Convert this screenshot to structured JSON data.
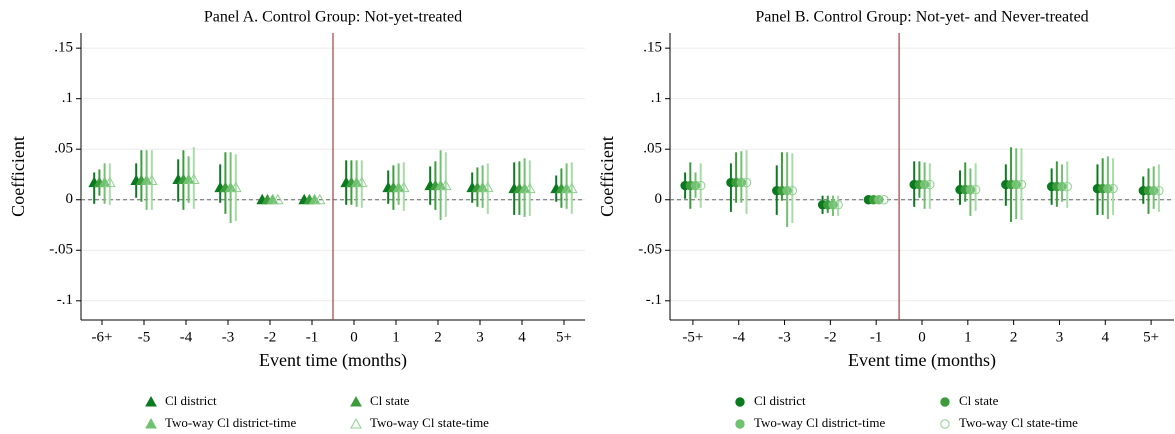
{
  "chart_data": [
    {
      "type": "errorbar",
      "title": "Panel A. Control Group: Not-yet-treated",
      "x_label": "Event time (months)",
      "y_label": "Coefficient",
      "categories": [
        "-6+",
        "-5",
        "-4",
        "-3",
        "-2",
        "-1",
        "0",
        "1",
        "2",
        "3",
        "4",
        "5+"
      ],
      "ylim": [
        -0.119,
        0.165
      ],
      "yticks": [
        {
          "value": -0.1,
          "label": "-.1"
        },
        {
          "value": -0.05,
          "label": "-.05"
        },
        0,
        {
          "value": 0.05,
          "label": ".05"
        },
        {
          "value": 0.1,
          "label": ".1"
        },
        {
          "value": 0.15,
          "label": ".15"
        }
      ],
      "grid": true,
      "hline": 0,
      "xline": 5.5,
      "marker": "triangle",
      "legend": "bottom",
      "series": [
        {
          "name": "Cl district",
          "color": "#0b7a1f",
          "hollow": false,
          "values": [
            0.017,
            0.019,
            0.02,
            0.012,
            0,
            0,
            0.017,
            0.012,
            0.014,
            0.012,
            0.011,
            0.011
          ],
          "lower": [
            -0.004,
            0.002,
            -0.002,
            -0.003,
            0,
            0,
            -0.005,
            -0.004,
            -0.005,
            -0.003,
            -0.015,
            -0.002
          ],
          "upper": [
            0.027,
            0.036,
            0.04,
            0.035,
            0,
            0,
            0.039,
            0.029,
            0.033,
            0.027,
            0.037,
            0.024
          ]
        },
        {
          "name": "Cl state",
          "color": "#3c9c3c",
          "hollow": false,
          "values": [
            0.017,
            0.019,
            0.02,
            0.012,
            0,
            0,
            0.017,
            0.012,
            0.014,
            0.012,
            0.011,
            0.011
          ],
          "lower": [
            0.004,
            -0.002,
            -0.01,
            -0.014,
            0,
            0,
            -0.005,
            -0.01,
            -0.01,
            -0.007,
            -0.015,
            -0.008
          ],
          "upper": [
            0.03,
            0.049,
            0.049,
            0.047,
            0,
            0,
            0.039,
            0.034,
            0.038,
            0.032,
            0.038,
            0.031
          ]
        },
        {
          "name": "Two-way Cl district-time",
          "color": "#72c172",
          "hollow": false,
          "values": [
            0.017,
            0.019,
            0.02,
            0.012,
            0,
            0,
            0.017,
            0.012,
            0.014,
            0.012,
            0.011,
            0.011
          ],
          "lower": [
            -0.004,
            -0.01,
            -0.003,
            -0.023,
            0,
            0,
            -0.007,
            -0.005,
            -0.02,
            -0.008,
            -0.017,
            -0.009
          ],
          "upper": [
            0.036,
            0.049,
            0.043,
            0.047,
            0,
            0,
            0.039,
            0.036,
            0.049,
            0.034,
            0.041,
            0.036
          ]
        },
        {
          "name": "Two-way Cl state-time",
          "color": "#a9dba9",
          "hollow": true,
          "values": [
            0.017,
            0.019,
            0.02,
            0.012,
            0,
            0,
            0.017,
            0.012,
            0.014,
            0.012,
            0.011,
            0.011
          ],
          "lower": [
            -0.005,
            -0.01,
            -0.009,
            -0.021,
            0,
            0,
            -0.008,
            -0.011,
            -0.017,
            -0.014,
            -0.016,
            -0.014
          ],
          "upper": [
            0.036,
            0.049,
            0.052,
            0.045,
            0,
            0,
            0.039,
            0.037,
            0.047,
            0.036,
            0.039,
            0.037
          ]
        }
      ]
    },
    {
      "type": "errorbar",
      "title": "Panel B. Control Group: Not-yet- and Never-treated",
      "x_label": "Event time (months)",
      "y_label": "Coefficient",
      "categories": [
        "-5+",
        "-4",
        "-3",
        "-2",
        "-1",
        "0",
        "1",
        "2",
        "3",
        "4",
        "5+"
      ],
      "ylim": [
        -0.119,
        0.165
      ],
      "yticks": [
        {
          "value": -0.1,
          "label": "-.1"
        },
        {
          "value": -0.05,
          "label": "-.05"
        },
        0,
        {
          "value": 0.05,
          "label": ".05"
        },
        {
          "value": 0.1,
          "label": ".1"
        },
        {
          "value": 0.15,
          "label": ".15"
        }
      ],
      "grid": true,
      "hline": 0,
      "xline": 4.5,
      "marker": "circle",
      "legend": "bottom",
      "series": [
        {
          "name": "Cl district",
          "color": "#0b7a1f",
          "hollow": false,
          "values": [
            0.014,
            0.017,
            0.009,
            -0.005,
            0,
            0.015,
            0.01,
            0.015,
            0.013,
            0.011,
            0.009
          ],
          "lower": [
            0.001,
            -0.012,
            -0.015,
            -0.014,
            0,
            -0.007,
            -0.005,
            -0.006,
            -0.005,
            -0.015,
            -0.004
          ],
          "upper": [
            0.027,
            0.036,
            0.034,
            0.004,
            0,
            0.038,
            0.029,
            0.035,
            0.031,
            0.035,
            0.023
          ]
        },
        {
          "name": "Cl state",
          "color": "#3c9c3c",
          "hollow": false,
          "values": [
            0.014,
            0.017,
            0.009,
            -0.005,
            0,
            0.015,
            0.01,
            0.015,
            0.013,
            0.011,
            0.009
          ],
          "lower": [
            -0.009,
            -0.003,
            -0.001,
            -0.013,
            0,
            0.002,
            -0.002,
            -0.022,
            -0.007,
            -0.015,
            -0.014
          ],
          "upper": [
            0.037,
            0.047,
            0.047,
            0.004,
            0,
            0.038,
            0.037,
            0.052,
            0.038,
            0.041,
            0.031
          ]
        },
        {
          "name": "Two-way Cl district-time",
          "color": "#72c172",
          "hollow": false,
          "values": [
            0.014,
            0.017,
            0.009,
            -0.005,
            0,
            0.015,
            0.01,
            0.015,
            0.013,
            0.011,
            0.009
          ],
          "lower": [
            0.002,
            -0.003,
            -0.027,
            -0.016,
            0,
            -0.009,
            -0.016,
            -0.019,
            -0.002,
            -0.019,
            -0.009
          ],
          "upper": [
            0.027,
            0.048,
            0.047,
            0.004,
            0,
            0.037,
            0.031,
            0.051,
            0.035,
            0.043,
            0.033
          ]
        },
        {
          "name": "Two-way Cl state-time",
          "color": "#a9dba9",
          "hollow": true,
          "values": [
            0.014,
            0.017,
            0.009,
            -0.005,
            0,
            0.015,
            0.01,
            0.015,
            0.013,
            0.011,
            0.009
          ],
          "lower": [
            -0.008,
            -0.014,
            -0.023,
            -0.016,
            0,
            -0.009,
            -0.011,
            -0.02,
            -0.008,
            -0.015,
            -0.012
          ],
          "upper": [
            0.036,
            0.049,
            0.046,
            0.004,
            0,
            0.036,
            0.036,
            0.051,
            0.038,
            0.041,
            0.035
          ]
        }
      ]
    }
  ]
}
